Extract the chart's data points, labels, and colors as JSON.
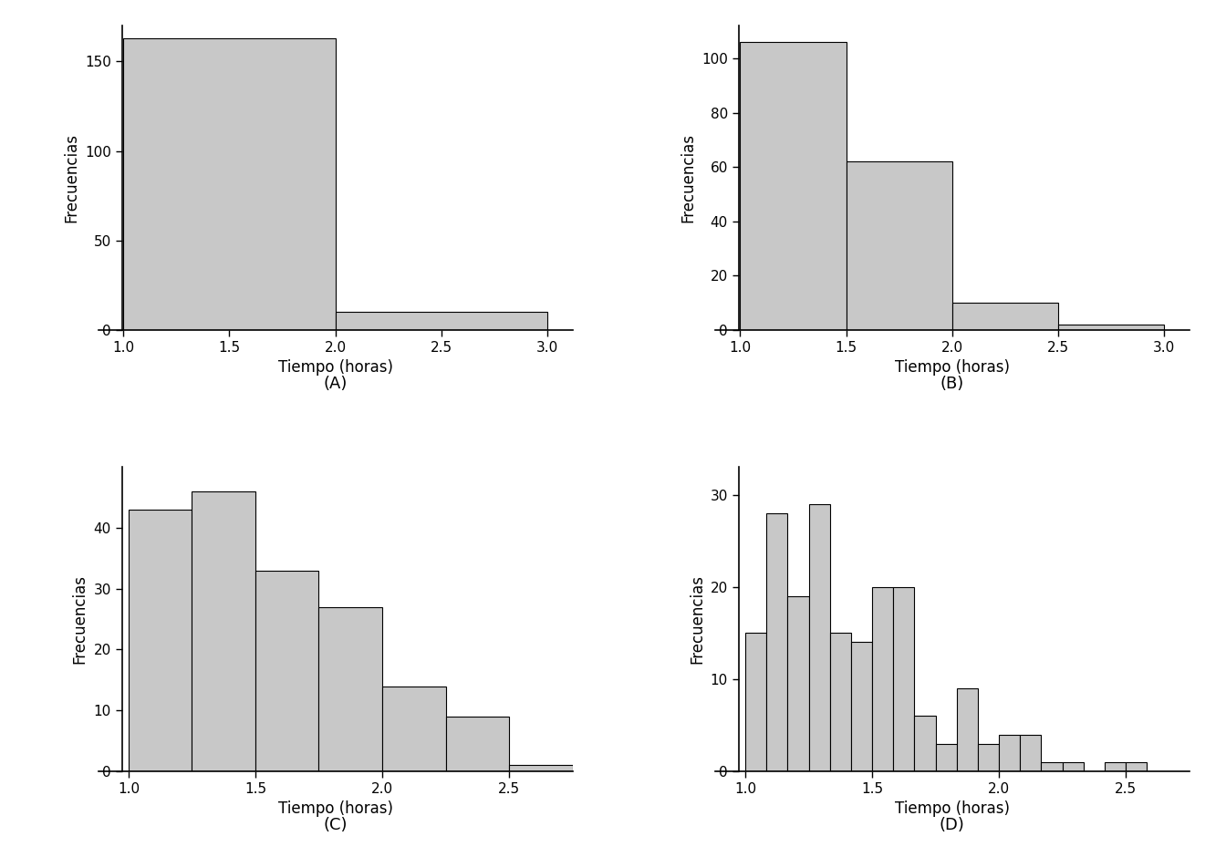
{
  "A": {
    "bin_edges": [
      1.0,
      2.0,
      3.0
    ],
    "counts": [
      163,
      10
    ],
    "xlim": [
      0.88,
      3.12
    ],
    "ylim": [
      0,
      170
    ],
    "yticks": [
      0,
      50,
      100,
      150
    ],
    "xticks": [
      1.0,
      1.5,
      2.0,
      2.5,
      3.0
    ],
    "ylabel": "Frecuencias",
    "label": "(A)"
  },
  "B": {
    "bin_edges": [
      1.0,
      1.5,
      2.0,
      2.5,
      3.0
    ],
    "counts": [
      106,
      62,
      10,
      2
    ],
    "xlim": [
      0.88,
      3.12
    ],
    "ylim": [
      0,
      112
    ],
    "yticks": [
      0,
      20,
      40,
      60,
      80,
      100
    ],
    "xticks": [
      1.0,
      1.5,
      2.0,
      2.5,
      3.0
    ],
    "ylabel": "Frecuencias",
    "label": "(B)"
  },
  "C": {
    "bin_edges": [
      1.0,
      1.25,
      1.5,
      1.75,
      2.0,
      2.25,
      2.5,
      2.75
    ],
    "counts": [
      43,
      46,
      33,
      27,
      14,
      9,
      1
    ],
    "xlim": [
      0.88,
      2.75
    ],
    "ylim": [
      0,
      50
    ],
    "yticks": [
      0,
      10,
      20,
      30,
      40
    ],
    "xticks": [
      1.0,
      1.5,
      2.0,
      2.5
    ],
    "ylabel": "Frecuencias",
    "label": "(C)"
  },
  "D": {
    "bin_edges": [
      1.0,
      1.0833,
      1.1667,
      1.25,
      1.3333,
      1.4167,
      1.5,
      1.5833,
      1.6667,
      1.75,
      1.8333,
      1.9167,
      2.0,
      2.0833,
      2.1667,
      2.25,
      2.3333,
      2.4167,
      2.5,
      2.5833
    ],
    "counts": [
      15,
      28,
      19,
      29,
      15,
      14,
      20,
      20,
      6,
      3,
      9,
      3,
      4,
      4,
      1,
      1,
      0,
      1,
      1
    ],
    "xlim": [
      0.88,
      2.75
    ],
    "ylim": [
      0,
      33
    ],
    "yticks": [
      0,
      10,
      20,
      30
    ],
    "xticks": [
      1.0,
      1.5,
      2.0,
      2.5
    ],
    "ylabel": "Frecuencias",
    "label": "(D)"
  },
  "bar_color": "#c8c8c8",
  "bar_edgecolor": "#000000",
  "background_color": "#ffffff",
  "xlabel": "Tiempo (horas)",
  "tick_fontsize": 11,
  "axis_label_fontsize": 12,
  "letter_fontsize": 13
}
